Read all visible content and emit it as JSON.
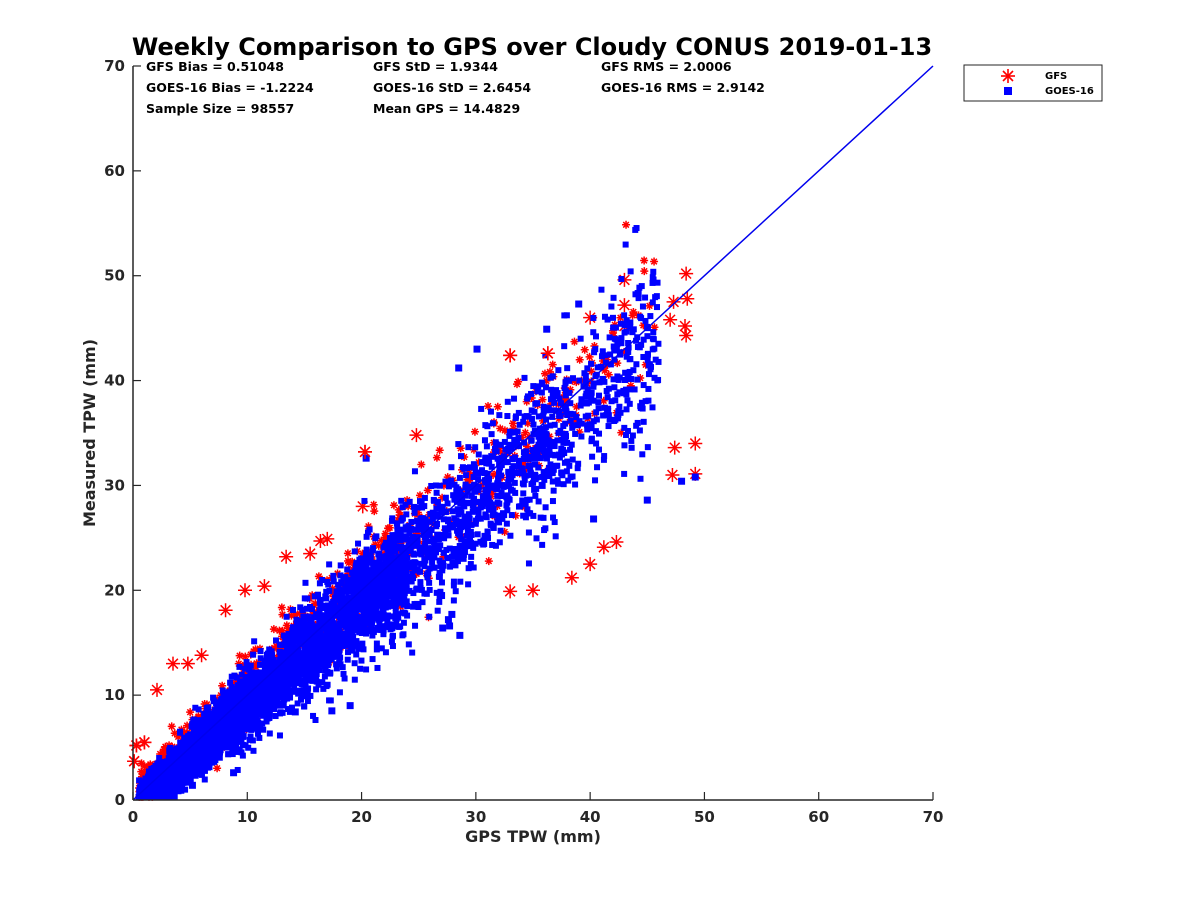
{
  "chart_data": {
    "type": "scatter",
    "title": "Weekly Comparison to GPS over Cloudy CONUS 2019-01-13",
    "xlabel": "GPS TPW (mm)",
    "ylabel": "Measured TPW (mm)",
    "xlim": [
      0,
      70
    ],
    "ylim": [
      0,
      70
    ],
    "x_ticks": [
      "0",
      "10",
      "20",
      "30",
      "40",
      "50",
      "60",
      "70"
    ],
    "y_ticks": [
      "0",
      "10",
      "20",
      "30",
      "40",
      "50",
      "60",
      "70"
    ],
    "grid": false,
    "legend_position": "outside-top-right",
    "stats": [
      "GFS Bias = 0.51048",
      "GFS StD = 1.9344",
      "GFS RMS = 2.0006",
      "GOES-16 Bias = -1.2224",
      "GOES-16 StD = 2.6454",
      "GOES-16 RMS = 2.9142",
      "Sample Size = 98557",
      "Mean GPS = 14.4829"
    ],
    "reference_line": {
      "name": "",
      "x": [
        0,
        70
      ],
      "y": [
        0,
        70
      ],
      "color": "#0000ee"
    },
    "series": [
      {
        "name": "GFS",
        "marker": "asterisk",
        "color": "#ff0000",
        "outliers": [
          [
            48.4,
            50.2
          ],
          [
            43.0,
            49.6
          ],
          [
            43.0,
            47.2
          ],
          [
            47.3,
            47.5
          ],
          [
            48.5,
            47.8
          ],
          [
            48.3,
            45.2
          ],
          [
            47.0,
            45.8
          ],
          [
            40.0,
            46.0
          ],
          [
            43.0,
            45.2
          ],
          [
            48.4,
            44.3
          ],
          [
            33.0,
            42.4
          ],
          [
            36.3,
            42.6
          ],
          [
            47.4,
            33.6
          ],
          [
            49.2,
            34.0
          ],
          [
            49.2,
            31.1
          ],
          [
            47.2,
            31.0
          ],
          [
            20.3,
            33.2
          ],
          [
            24.8,
            34.8
          ],
          [
            20.1,
            28.0
          ],
          [
            33.0,
            19.9
          ],
          [
            35.0,
            20.0
          ],
          [
            38.4,
            21.2
          ],
          [
            40.0,
            22.5
          ],
          [
            42.3,
            24.6
          ],
          [
            41.2,
            24.1
          ],
          [
            8.1,
            18.1
          ],
          [
            9.8,
            20.0
          ],
          [
            11.5,
            20.4
          ],
          [
            13.4,
            23.2
          ],
          [
            15.5,
            23.5
          ],
          [
            16.4,
            24.7
          ],
          [
            17.0,
            24.9
          ],
          [
            3.5,
            13.0
          ],
          [
            4.8,
            13.0
          ],
          [
            6.0,
            13.8
          ],
          [
            0.3,
            5.2
          ],
          [
            1.0,
            5.5
          ],
          [
            2.1,
            10.5
          ],
          [
            0.1,
            3.7
          ]
        ]
      },
      {
        "name": "GOES-16",
        "marker": "square",
        "color": "#0000ff",
        "outliers": [
          [
            44.2,
            48.3
          ],
          [
            39.0,
            47.3
          ],
          [
            36.2,
            44.9
          ],
          [
            28.5,
            41.2
          ],
          [
            30.1,
            43.0
          ],
          [
            20.4,
            32.6
          ],
          [
            48.0,
            30.4
          ],
          [
            49.2,
            30.8
          ],
          [
            45.0,
            28.6
          ],
          [
            28.6,
            15.7
          ],
          [
            27.1,
            16.4
          ],
          [
            27.7,
            16.6
          ],
          [
            27.6,
            17.2
          ],
          [
            27.9,
            17.7
          ],
          [
            19.0,
            9.0
          ],
          [
            14.2,
            8.4
          ],
          [
            17.4,
            8.5
          ],
          [
            27.0,
            19.5
          ],
          [
            40.3,
            26.8
          ],
          [
            35.8,
            30.0
          ],
          [
            2.8,
            0.9
          ],
          [
            5.2,
            1.4
          ],
          [
            8.8,
            2.6
          ]
        ]
      }
    ]
  },
  "legend": [
    {
      "label": "GFS",
      "marker": "asterisk",
      "color": "#ff0000"
    },
    {
      "label": "GOES-16",
      "marker": "square",
      "color": "#0000ff"
    }
  ]
}
